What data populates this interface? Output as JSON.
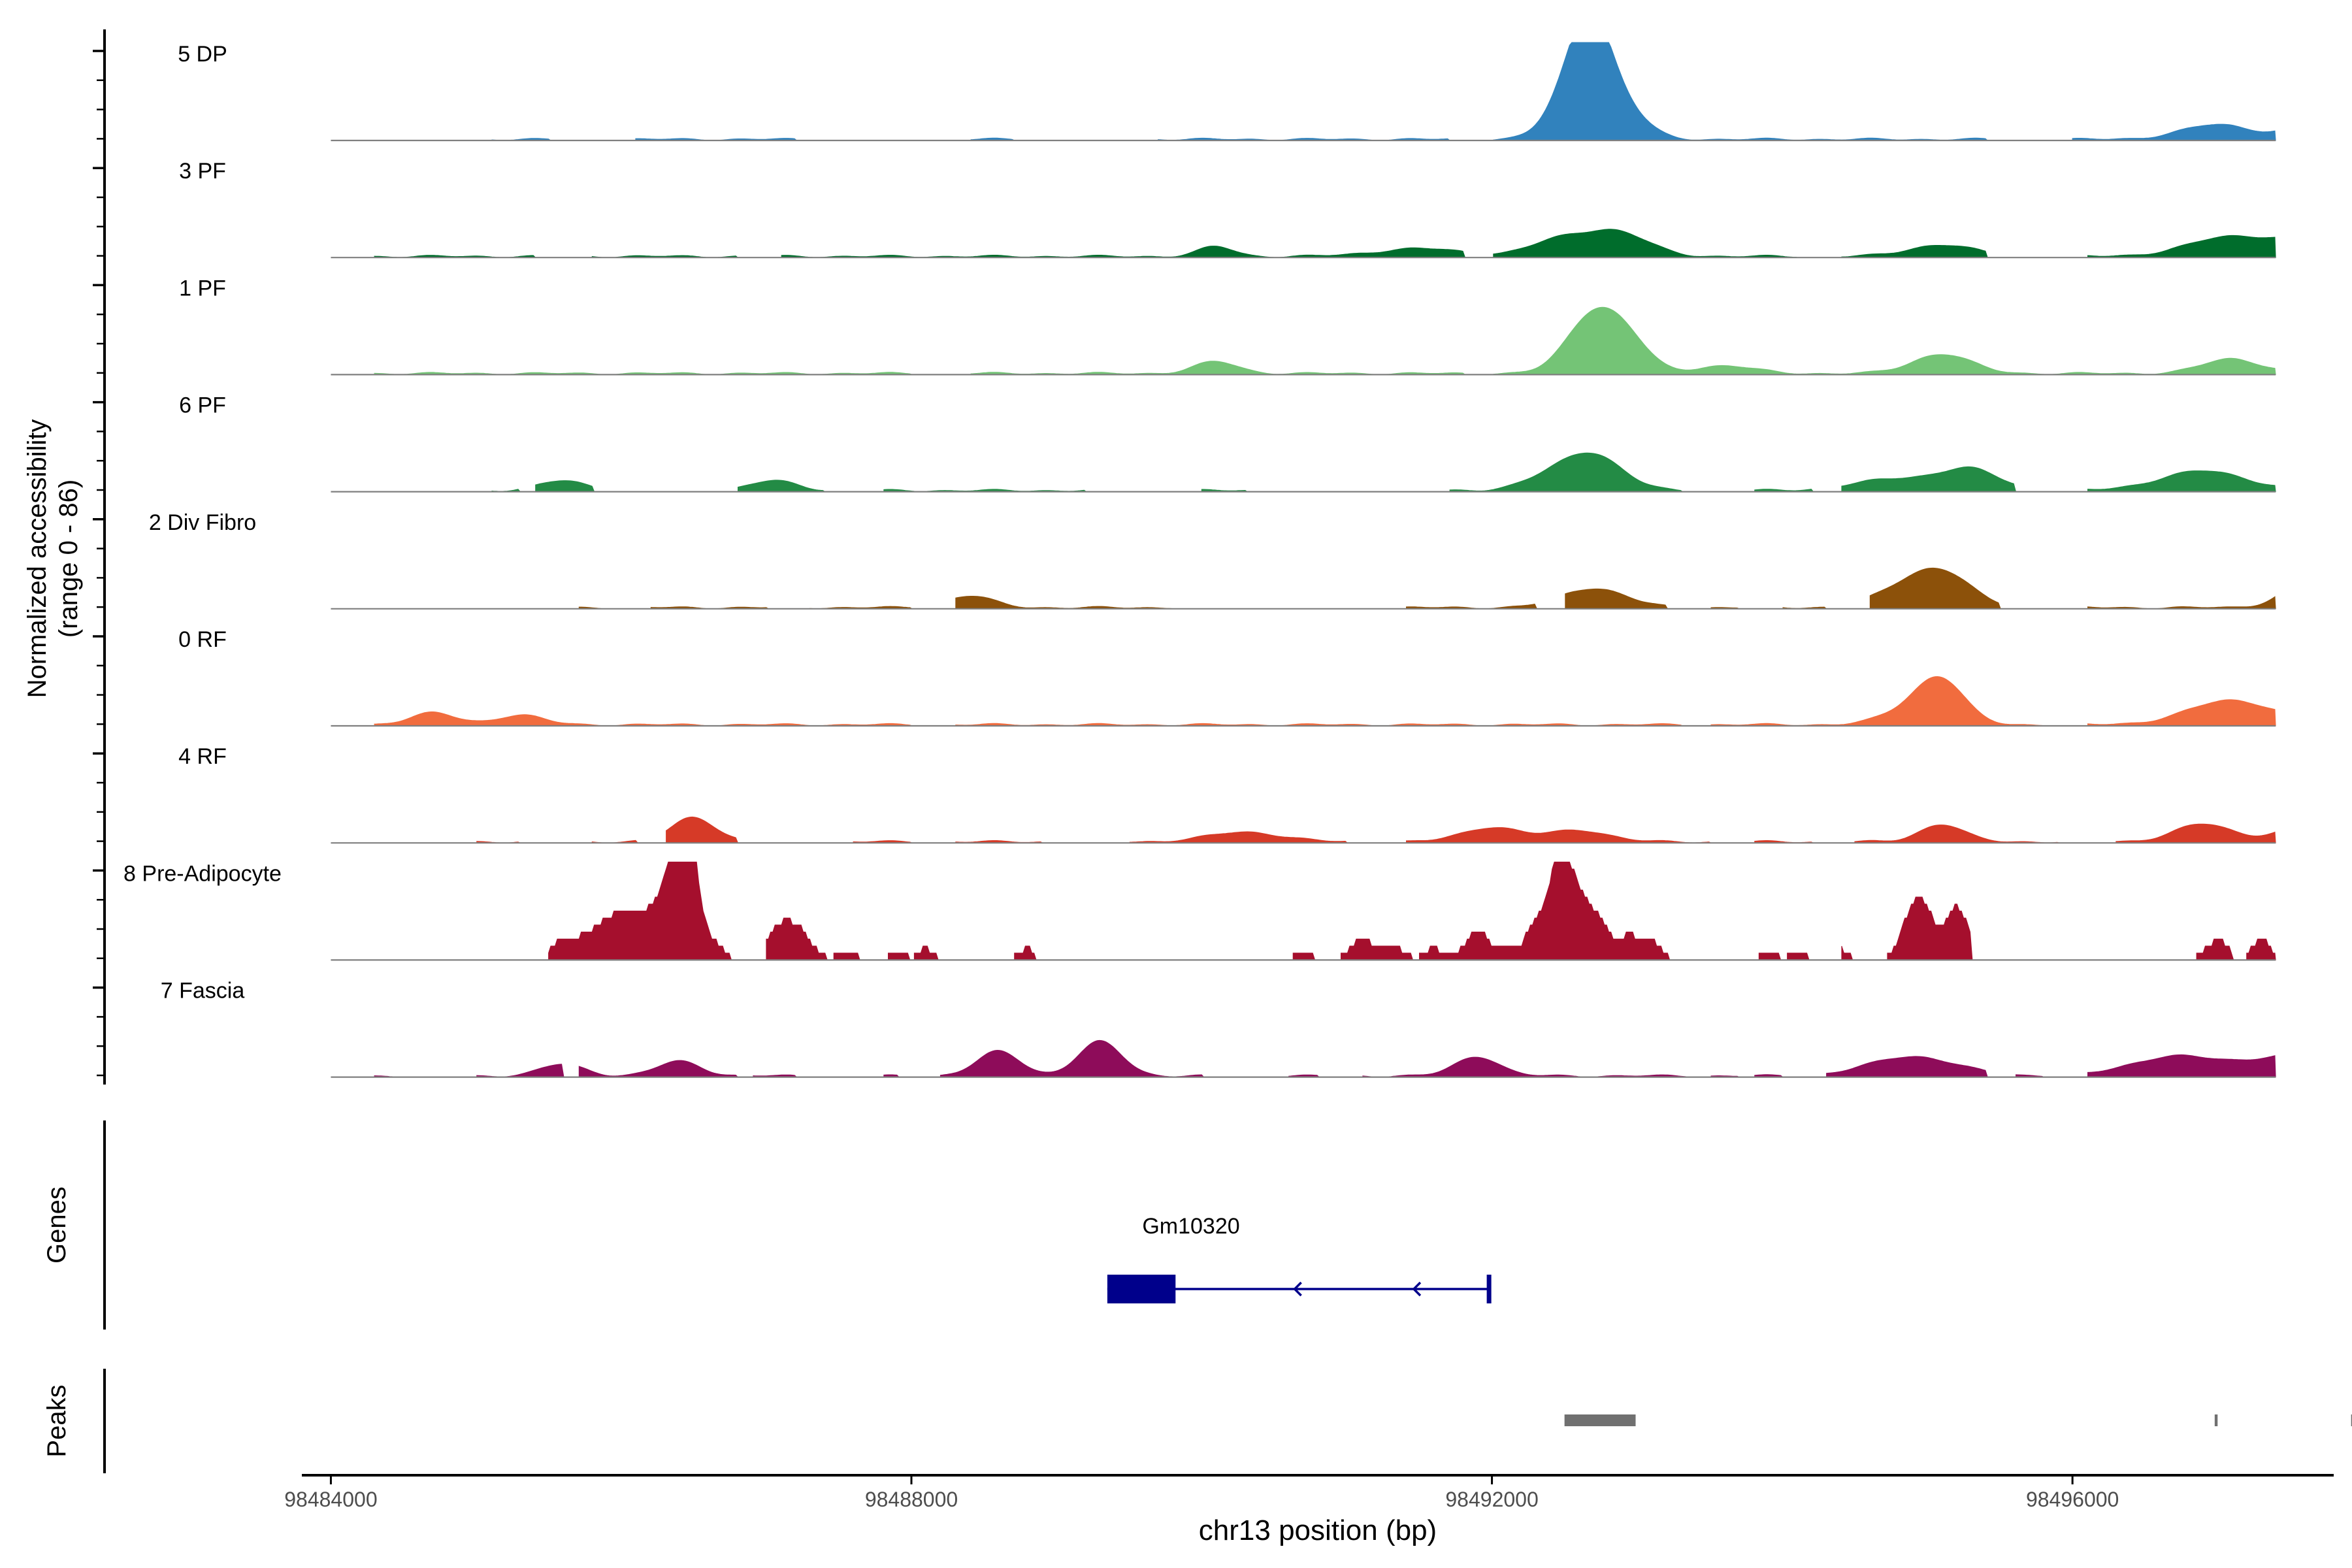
{
  "chart_data": {
    "type": "area",
    "title": "",
    "region": "chr13",
    "xlabel": "chr13 position (bp)",
    "ylabel_line1": "Normalized accessibility",
    "ylabel_line2": "(range 0 - 86)",
    "y_range": [
      0,
      86
    ],
    "xlim": [
      98483800,
      98497800
    ],
    "data_start": 98484000,
    "data_end": 98497400,
    "x_ticks": [
      98484000,
      98488000,
      98492000,
      98496000
    ],
    "x_tick_labels": [
      "98484000",
      "98488000",
      "98492000",
      "98496000"
    ],
    "tracks": [
      {
        "name": "5 DP",
        "color": "#3182BD",
        "baseline": 0.7,
        "peaks": [
          [
            98492680,
            1.0,
            140
          ],
          [
            98492530,
            0.35,
            160
          ],
          [
            98492900,
            0.3,
            160
          ],
          [
            98498300,
            0.55,
            180
          ],
          [
            98498100,
            0.25,
            150
          ],
          [
            98497750,
            0.2,
            200
          ],
          [
            98497000,
            0.15,
            250
          ]
        ],
        "segments": [
          [
            98485100,
            98485500
          ],
          [
            98486100,
            98487200
          ],
          [
            98488400,
            98488700
          ],
          [
            98489700,
            98491700
          ],
          [
            98492000,
            98495400
          ],
          [
            98496000,
            98498800
          ]
        ]
      },
      {
        "name": "3 PF",
        "color": "#006D2C",
        "baseline": 0.7,
        "peaks": [
          [
            98498300,
            1.0,
            180
          ],
          [
            98498050,
            0.3,
            160
          ],
          [
            98497100,
            0.2,
            300
          ],
          [
            98497700,
            0.15,
            250
          ],
          [
            98492850,
            0.25,
            220
          ],
          [
            98492450,
            0.15,
            200
          ],
          [
            98490100,
            0.1,
            120
          ],
          [
            98495100,
            0.12,
            220
          ],
          [
            98491500,
            0.08,
            300
          ]
        ],
        "segments": [
          [
            98484300,
            98485400
          ],
          [
            98485800,
            98486800
          ],
          [
            98487100,
            98491800
          ],
          [
            98492000,
            98494100
          ],
          [
            98494400,
            98495400
          ],
          [
            98496100,
            98498800
          ]
        ]
      },
      {
        "name": "1 PF",
        "color": "#74C476",
        "baseline": 0.7,
        "peaks": [
          [
            98492700,
            0.6,
            180
          ],
          [
            98492950,
            0.25,
            150
          ],
          [
            98498300,
            0.45,
            180
          ],
          [
            98498000,
            0.15,
            200
          ],
          [
            98495100,
            0.2,
            200
          ],
          [
            98497100,
            0.15,
            200
          ],
          [
            98490100,
            0.12,
            150
          ],
          [
            98493600,
            0.08,
            200
          ]
        ],
        "segments": [
          [
            98484300,
            98488000
          ],
          [
            98488400,
            98491800
          ],
          [
            98492000,
            98498800
          ]
        ]
      },
      {
        "name": "6 PF",
        "color": "#238B45",
        "baseline": 0.7,
        "peaks": [
          [
            98492700,
            0.35,
            200
          ],
          [
            98492400,
            0.12,
            200
          ],
          [
            98498250,
            0.55,
            220
          ],
          [
            98498550,
            0.25,
            200
          ],
          [
            98496900,
            0.2,
            300
          ],
          [
            98495300,
            0.2,
            200
          ],
          [
            98494800,
            0.12,
            300
          ],
          [
            98485600,
            0.1,
            160
          ],
          [
            98487050,
            0.1,
            160
          ]
        ],
        "segments": [
          [
            98485100,
            98485300
          ],
          [
            98485400,
            98485800
          ],
          [
            98486800,
            98487400
          ],
          [
            98487800,
            98489200
          ],
          [
            98490000,
            98490300
          ],
          [
            98491700,
            98493300
          ],
          [
            98493800,
            98494200
          ],
          [
            98494400,
            98495600
          ],
          [
            98496100,
            98498800
          ]
        ]
      },
      {
        "name": "2 Div Fibro",
        "color": "#8C510A",
        "baseline": 0.7,
        "peaks": [
          [
            98498300,
            0.65,
            180
          ],
          [
            98497700,
            0.35,
            200
          ],
          [
            98498000,
            0.2,
            160
          ],
          [
            98495100,
            0.35,
            200
          ],
          [
            98494800,
            0.15,
            200
          ],
          [
            98492700,
            0.2,
            220
          ],
          [
            98488400,
            0.12,
            160
          ]
        ],
        "segments": [
          [
            98485700,
            98485900
          ],
          [
            98486200,
            98487000
          ],
          [
            98487300,
            98488000
          ],
          [
            98488300,
            98489800
          ],
          [
            98491400,
            98492300
          ],
          [
            98492500,
            98493200
          ],
          [
            98493500,
            98493700
          ],
          [
            98494000,
            98494300
          ],
          [
            98494600,
            98495500
          ],
          [
            98496100,
            98498800
          ]
        ]
      },
      {
        "name": "0 RF",
        "color": "#F16C3E",
        "baseline": 0.7,
        "peaks": [
          [
            98498300,
            0.75,
            170
          ],
          [
            98498100,
            0.3,
            150
          ],
          [
            98497100,
            0.25,
            300
          ],
          [
            98495100,
            0.4,
            160
          ],
          [
            98494900,
            0.15,
            200
          ],
          [
            98484700,
            0.12,
            160
          ],
          [
            98485300,
            0.1,
            160
          ]
        ],
        "segments": [
          [
            98484300,
            98488000
          ],
          [
            98488300,
            98493300
          ],
          [
            98493500,
            98495800
          ],
          [
            98496100,
            98498800
          ]
        ]
      },
      {
        "name": "4 RF",
        "color": "#D63A27",
        "baseline": 0.7,
        "peaks": [
          [
            98486500,
            0.25,
            150
          ],
          [
            98492000,
            0.15,
            200
          ],
          [
            98492600,
            0.12,
            200
          ],
          [
            98495100,
            0.18,
            150
          ],
          [
            98496900,
            0.18,
            200
          ],
          [
            98497600,
            0.15,
            200
          ],
          [
            98498300,
            0.22,
            200
          ],
          [
            98490300,
            0.1,
            250
          ]
        ],
        "segments": [
          [
            98485000,
            98485300
          ],
          [
            98485800,
            98486100
          ],
          [
            98486300,
            98486800
          ],
          [
            98487600,
            98488000
          ],
          [
            98488300,
            98488900
          ],
          [
            98489500,
            98491000
          ],
          [
            98491400,
            98493500
          ],
          [
            98493800,
            98494200
          ],
          [
            98494500,
            98495900
          ],
          [
            98496300,
            98498800
          ]
        ]
      },
      {
        "name": "8 Pre-Adipocyte",
        "color": "#A50F2D",
        "baseline": 0,
        "peaks": [
          [
            98486400,
            1.0,
            80
          ],
          [
            98486470,
            0.85,
            70
          ],
          [
            98486250,
            0.4,
            80
          ],
          [
            98486100,
            0.35,
            90
          ],
          [
            98486650,
            0.15,
            60
          ],
          [
            98485950,
            0.3,
            80
          ],
          [
            98485800,
            0.25,
            100
          ],
          [
            98485600,
            0.2,
            80
          ],
          [
            98487100,
            0.35,
            100
          ],
          [
            98487250,
            0.2,
            80
          ],
          [
            98487550,
            0.1,
            60
          ],
          [
            98487900,
            0.1,
            50
          ],
          [
            98488100,
            0.12,
            50
          ],
          [
            98488800,
            0.12,
            60
          ],
          [
            98490700,
            0.1,
            50
          ],
          [
            98491100,
            0.2,
            80
          ],
          [
            98491300,
            0.15,
            80
          ],
          [
            98491600,
            0.12,
            60
          ],
          [
            98491900,
            0.3,
            80
          ],
          [
            98492100,
            0.12,
            60
          ],
          [
            98492280,
            0.3,
            60
          ],
          [
            98492460,
            1.0,
            80
          ],
          [
            98492600,
            0.5,
            80
          ],
          [
            98492750,
            0.35,
            80
          ],
          [
            98492950,
            0.25,
            60
          ],
          [
            98493100,
            0.2,
            60
          ],
          [
            98493900,
            0.1,
            50
          ],
          [
            98494100,
            0.1,
            50
          ],
          [
            98494400,
            0.12,
            50
          ],
          [
            98494900,
            0.5,
            80
          ],
          [
            98495000,
            0.3,
            60
          ],
          [
            98495200,
            0.55,
            80
          ],
          [
            98497000,
            0.2,
            80
          ],
          [
            98497300,
            0.22,
            60
          ],
          [
            98497650,
            0.6,
            70
          ],
          [
            98497800,
            0.35,
            60
          ],
          [
            98498000,
            0.15,
            50
          ],
          [
            98498400,
            0.2,
            60
          ]
        ],
        "segments": [
          [
            98485500,
            98486800
          ],
          [
            98487000,
            98487700
          ],
          [
            98487700,
            98487900
          ],
          [
            98487900,
            98488300
          ],
          [
            98488650,
            98488850
          ],
          [
            98490600,
            98491800
          ],
          [
            98491800,
            98493300
          ],
          [
            98493800,
            98494000
          ],
          [
            98494000,
            98494200
          ],
          [
            98494400,
            98494500
          ],
          [
            98494700,
            98495300
          ],
          [
            98496700,
            98497100
          ],
          [
            98497200,
            98497900
          ],
          [
            98497900,
            98498000
          ],
          [
            98498250,
            98498500
          ]
        ]
      },
      {
        "name": "7 Fascia",
        "color": "#8E0C5A",
        "baseline": 0.7,
        "peaks": [
          [
            98498300,
            0.6,
            180
          ],
          [
            98498000,
            0.3,
            200
          ],
          [
            98497500,
            0.2,
            300
          ],
          [
            98496700,
            0.2,
            300
          ],
          [
            98494900,
            0.2,
            300
          ],
          [
            98489300,
            0.35,
            150
          ],
          [
            98488600,
            0.25,
            150
          ],
          [
            98491900,
            0.2,
            150
          ],
          [
            98486400,
            0.15,
            150
          ],
          [
            98485600,
            0.12,
            150
          ]
        ],
        "segments": [
          [
            98484300,
            98484500
          ],
          [
            98485000,
            98485600
          ],
          [
            98485700,
            98486800
          ],
          [
            98486900,
            98487200
          ],
          [
            98487800,
            98487900
          ],
          [
            98488200,
            98490000
          ],
          [
            98490600,
            98490800
          ],
          [
            98491100,
            98491800
          ],
          [
            98491800,
            98492300
          ],
          [
            98492300,
            98493400
          ],
          [
            98493500,
            98493700
          ],
          [
            98493800,
            98494000
          ],
          [
            98494300,
            98495400
          ],
          [
            98495600,
            98495800
          ],
          [
            98496100,
            98498800
          ]
        ]
      }
    ],
    "genes_label": "Genes",
    "gene": {
      "name": "Gm10320",
      "color": "#00008B",
      "start": 98489350,
      "end": 98491980,
      "strand": "-",
      "exon": [
        98489350,
        98489820
      ]
    },
    "peaks_label": "Peaks",
    "peak_color": "#707070",
    "called_peaks": [
      [
        98492500,
        98492990
      ],
      [
        98496980,
        98497000
      ],
      [
        98497920,
        98498480
      ]
    ]
  }
}
